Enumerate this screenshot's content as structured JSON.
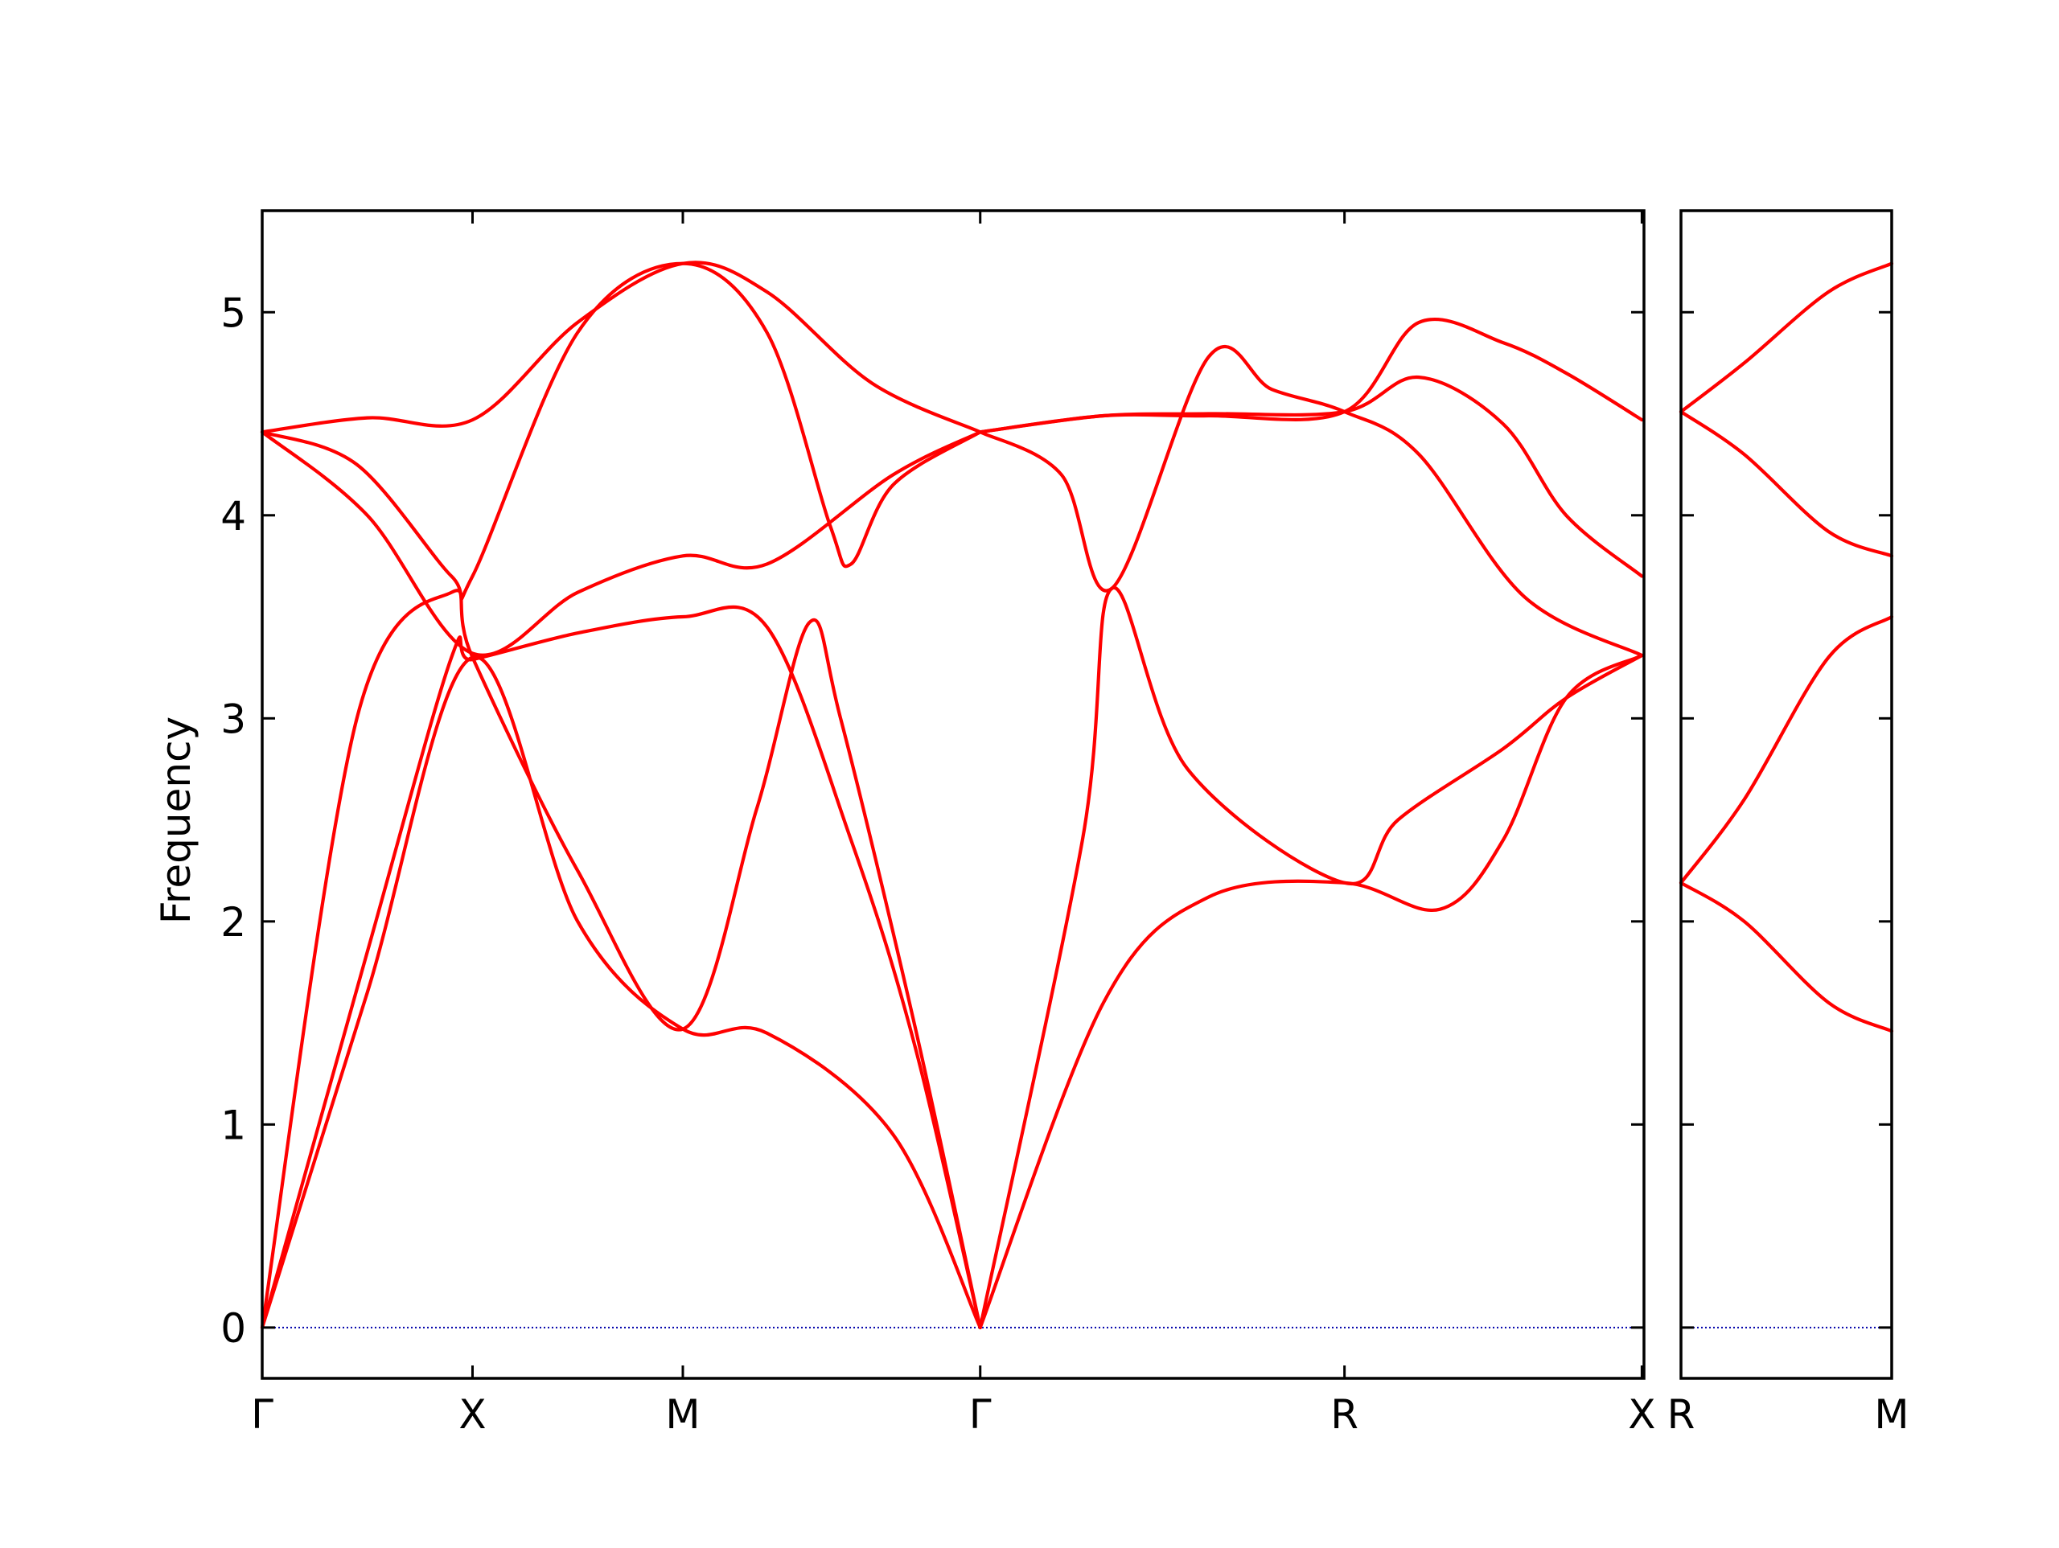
{
  "chart_data": {
    "type": "line",
    "title": "",
    "ylabel": "Frequency",
    "ylim": [
      -0.25,
      5.5
    ],
    "yticks": [
      0,
      1,
      2,
      3,
      4,
      5
    ],
    "grid": false,
    "line_color": "#ff0000",
    "zero_line_color": "#0000aa",
    "panels": [
      {
        "id": "main",
        "xlim": [
          0,
          6.57
        ],
        "x_ticks": [
          {
            "x": 0,
            "label": "Γ"
          },
          {
            "x": 1,
            "label": "X"
          },
          {
            "x": 2,
            "label": "M"
          },
          {
            "x": 3.414,
            "label": "Γ"
          },
          {
            "x": 5.146,
            "label": "R"
          },
          {
            "x": 6.56,
            "label": "X"
          }
        ],
        "series": [
          {
            "values": [
              [
                0,
                4.41
              ],
              [
                0.5,
                4.48
              ],
              [
                1,
                4.47
              ],
              [
                1.5,
                4.95
              ],
              [
                2,
                5.24
              ],
              [
                2.4,
                5.1
              ],
              [
                2.9,
                4.65
              ],
              [
                3.414,
                4.41
              ]
            ]
          },
          {
            "values": [
              [
                0,
                4.41
              ],
              [
                0.45,
                4.25
              ],
              [
                0.9,
                3.7
              ],
              [
                1,
                3.7
              ],
              [
                1.5,
                4.9
              ],
              [
                2,
                5.24
              ],
              [
                2.4,
                4.9
              ],
              [
                2.7,
                3.95
              ],
              [
                2.8,
                3.76
              ],
              [
                3.0,
                4.15
              ],
              [
                3.414,
                4.41
              ]
            ]
          },
          {
            "values": [
              [
                0,
                4.41
              ],
              [
                0.5,
                4.0
              ],
              [
                1,
                3.32
              ],
              [
                1.5,
                3.62
              ],
              [
                2,
                3.8
              ],
              [
                2.4,
                3.76
              ],
              [
                3.0,
                4.2
              ],
              [
                3.414,
                4.41
              ]
            ]
          },
          {
            "values": [
              [
                0,
                0
              ],
              [
                0.5,
                1.85
              ],
              [
                0.9,
                3.3
              ],
              [
                1,
                3.29
              ],
              [
                1.5,
                3.42
              ],
              [
                2,
                3.5
              ],
              [
                2.4,
                3.45
              ],
              [
                2.8,
                2.4
              ],
              [
                3.1,
                1.4
              ],
              [
                3.414,
                0
              ]
            ]
          },
          {
            "values": [
              [
                0,
                0
              ],
              [
                0.45,
                3.0
              ],
              [
                0.9,
                3.62
              ],
              [
                1,
                3.3
              ],
              [
                1.5,
                2.25
              ],
              [
                2,
                1.47
              ],
              [
                2.35,
                2.55
              ],
              [
                2.6,
                3.47
              ],
              [
                2.75,
                3.0
              ],
              [
                3.1,
                1.5
              ],
              [
                3.414,
                0
              ]
            ]
          },
          {
            "values": [
              [
                0,
                0
              ],
              [
                0.5,
                1.65
              ],
              [
                1,
                3.3
              ],
              [
                1.5,
                2.0
              ],
              [
                2,
                1.47
              ],
              [
                2.4,
                1.45
              ],
              [
                3.0,
                0.95
              ],
              [
                3.414,
                0
              ]
            ]
          },
          {
            "values": [
              [
                3.414,
                0
              ],
              [
                4.0,
                1.6
              ],
              [
                4.5,
                2.12
              ],
              [
                5.146,
                2.19
              ],
              [
                5.6,
                2.06
              ],
              [
                5.9,
                2.4
              ],
              [
                6.2,
                3.1
              ],
              [
                6.56,
                3.31
              ]
            ]
          },
          {
            "values": [
              [
                3.414,
                0
              ],
              [
                3.9,
                2.4
              ],
              [
                4.04,
                3.64
              ],
              [
                4.4,
                2.75
              ],
              [
                5.146,
                2.19
              ],
              [
                5.4,
                2.5
              ],
              [
                5.9,
                2.85
              ],
              [
                6.2,
                3.1
              ],
              [
                6.56,
                3.31
              ]
            ]
          },
          {
            "values": [
              [
                3.414,
                4.41
              ],
              [
                3.8,
                4.2
              ],
              [
                4.04,
                3.64
              ],
              [
                4.5,
                4.78
              ],
              [
                4.8,
                4.62
              ],
              [
                5.146,
                4.51
              ],
              [
                5.5,
                4.3
              ],
              [
                6.0,
                3.6
              ],
              [
                6.56,
                3.31
              ]
            ]
          },
          {
            "values": [
              [
                3.414,
                4.41
              ],
              [
                4.0,
                4.49
              ],
              [
                4.5,
                4.5
              ],
              [
                5.146,
                4.51
              ],
              [
                5.5,
                4.68
              ],
              [
                5.9,
                4.45
              ],
              [
                6.2,
                4.0
              ],
              [
                6.56,
                3.7
              ]
            ]
          },
          {
            "values": [
              [
                3.414,
                4.41
              ],
              [
                4.0,
                4.49
              ],
              [
                4.5,
                4.49
              ],
              [
                5.146,
                4.51
              ],
              [
                5.5,
                4.95
              ],
              [
                5.9,
                4.85
              ],
              [
                6.2,
                4.7
              ],
              [
                6.56,
                4.47
              ]
            ]
          }
        ]
      },
      {
        "id": "side",
        "xlim": [
          0,
          1
        ],
        "x_ticks": [
          {
            "x": 0,
            "label": "R"
          },
          {
            "x": 1,
            "label": "M"
          }
        ],
        "series": [
          {
            "values": [
              [
                0,
                4.51
              ],
              [
                0.3,
                4.75
              ],
              [
                0.7,
                5.1
              ],
              [
                1,
                5.24
              ]
            ]
          },
          {
            "values": [
              [
                0,
                4.51
              ],
              [
                0.3,
                4.3
              ],
              [
                0.7,
                3.92
              ],
              [
                1,
                3.8
              ]
            ]
          },
          {
            "values": [
              [
                0,
                2.19
              ],
              [
                0.3,
                2.6
              ],
              [
                0.7,
                3.3
              ],
              [
                1,
                3.5
              ]
            ]
          },
          {
            "values": [
              [
                0,
                2.19
              ],
              [
                0.3,
                2.0
              ],
              [
                0.7,
                1.6
              ],
              [
                1,
                1.46
              ]
            ]
          }
        ]
      }
    ]
  }
}
